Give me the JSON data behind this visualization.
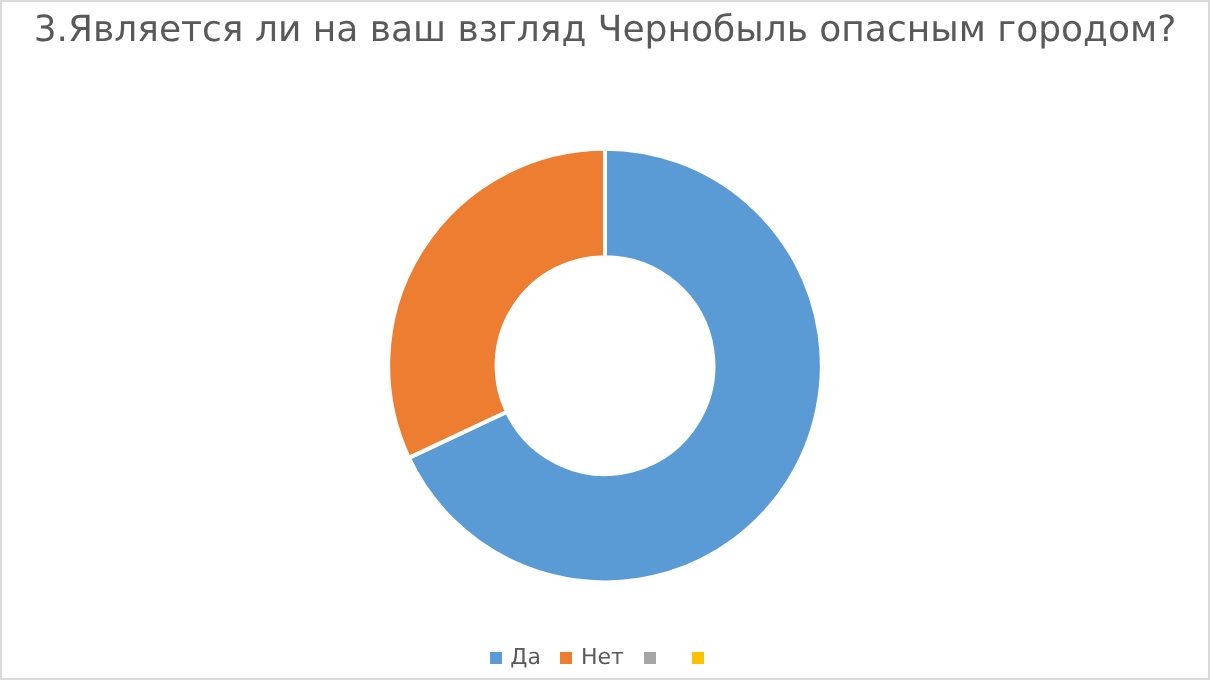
{
  "chart_data": {
    "type": "donut",
    "title": "3.Является ли на ваш взгляд Чернобыль опасным городом?",
    "categories": [
      "Да",
      "Нет",
      null,
      null
    ],
    "values": [
      68,
      32,
      0,
      0
    ],
    "colors": [
      "#5b9bd5",
      "#ed7d31",
      "#a5a5a5",
      "#ffc000"
    ],
    "legend": "bottom"
  }
}
